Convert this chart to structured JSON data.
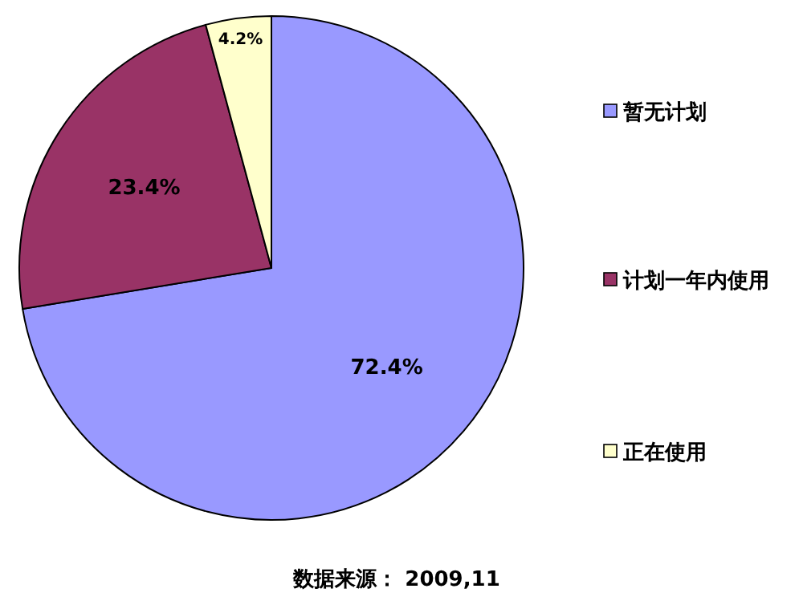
{
  "chart_data": {
    "type": "pie",
    "categories": [
      "暂无计划",
      "计划一年内使用",
      "正在使用"
    ],
    "values": [
      72.4,
      23.4,
      4.2
    ],
    "colors": [
      "#9999ff",
      "#993366",
      "#ffffcc"
    ],
    "value_labels": [
      "72.4%",
      "23.4%",
      "4.2%"
    ],
    "legend": "right",
    "annotations": [
      "数据来源： 2009,11"
    ]
  }
}
